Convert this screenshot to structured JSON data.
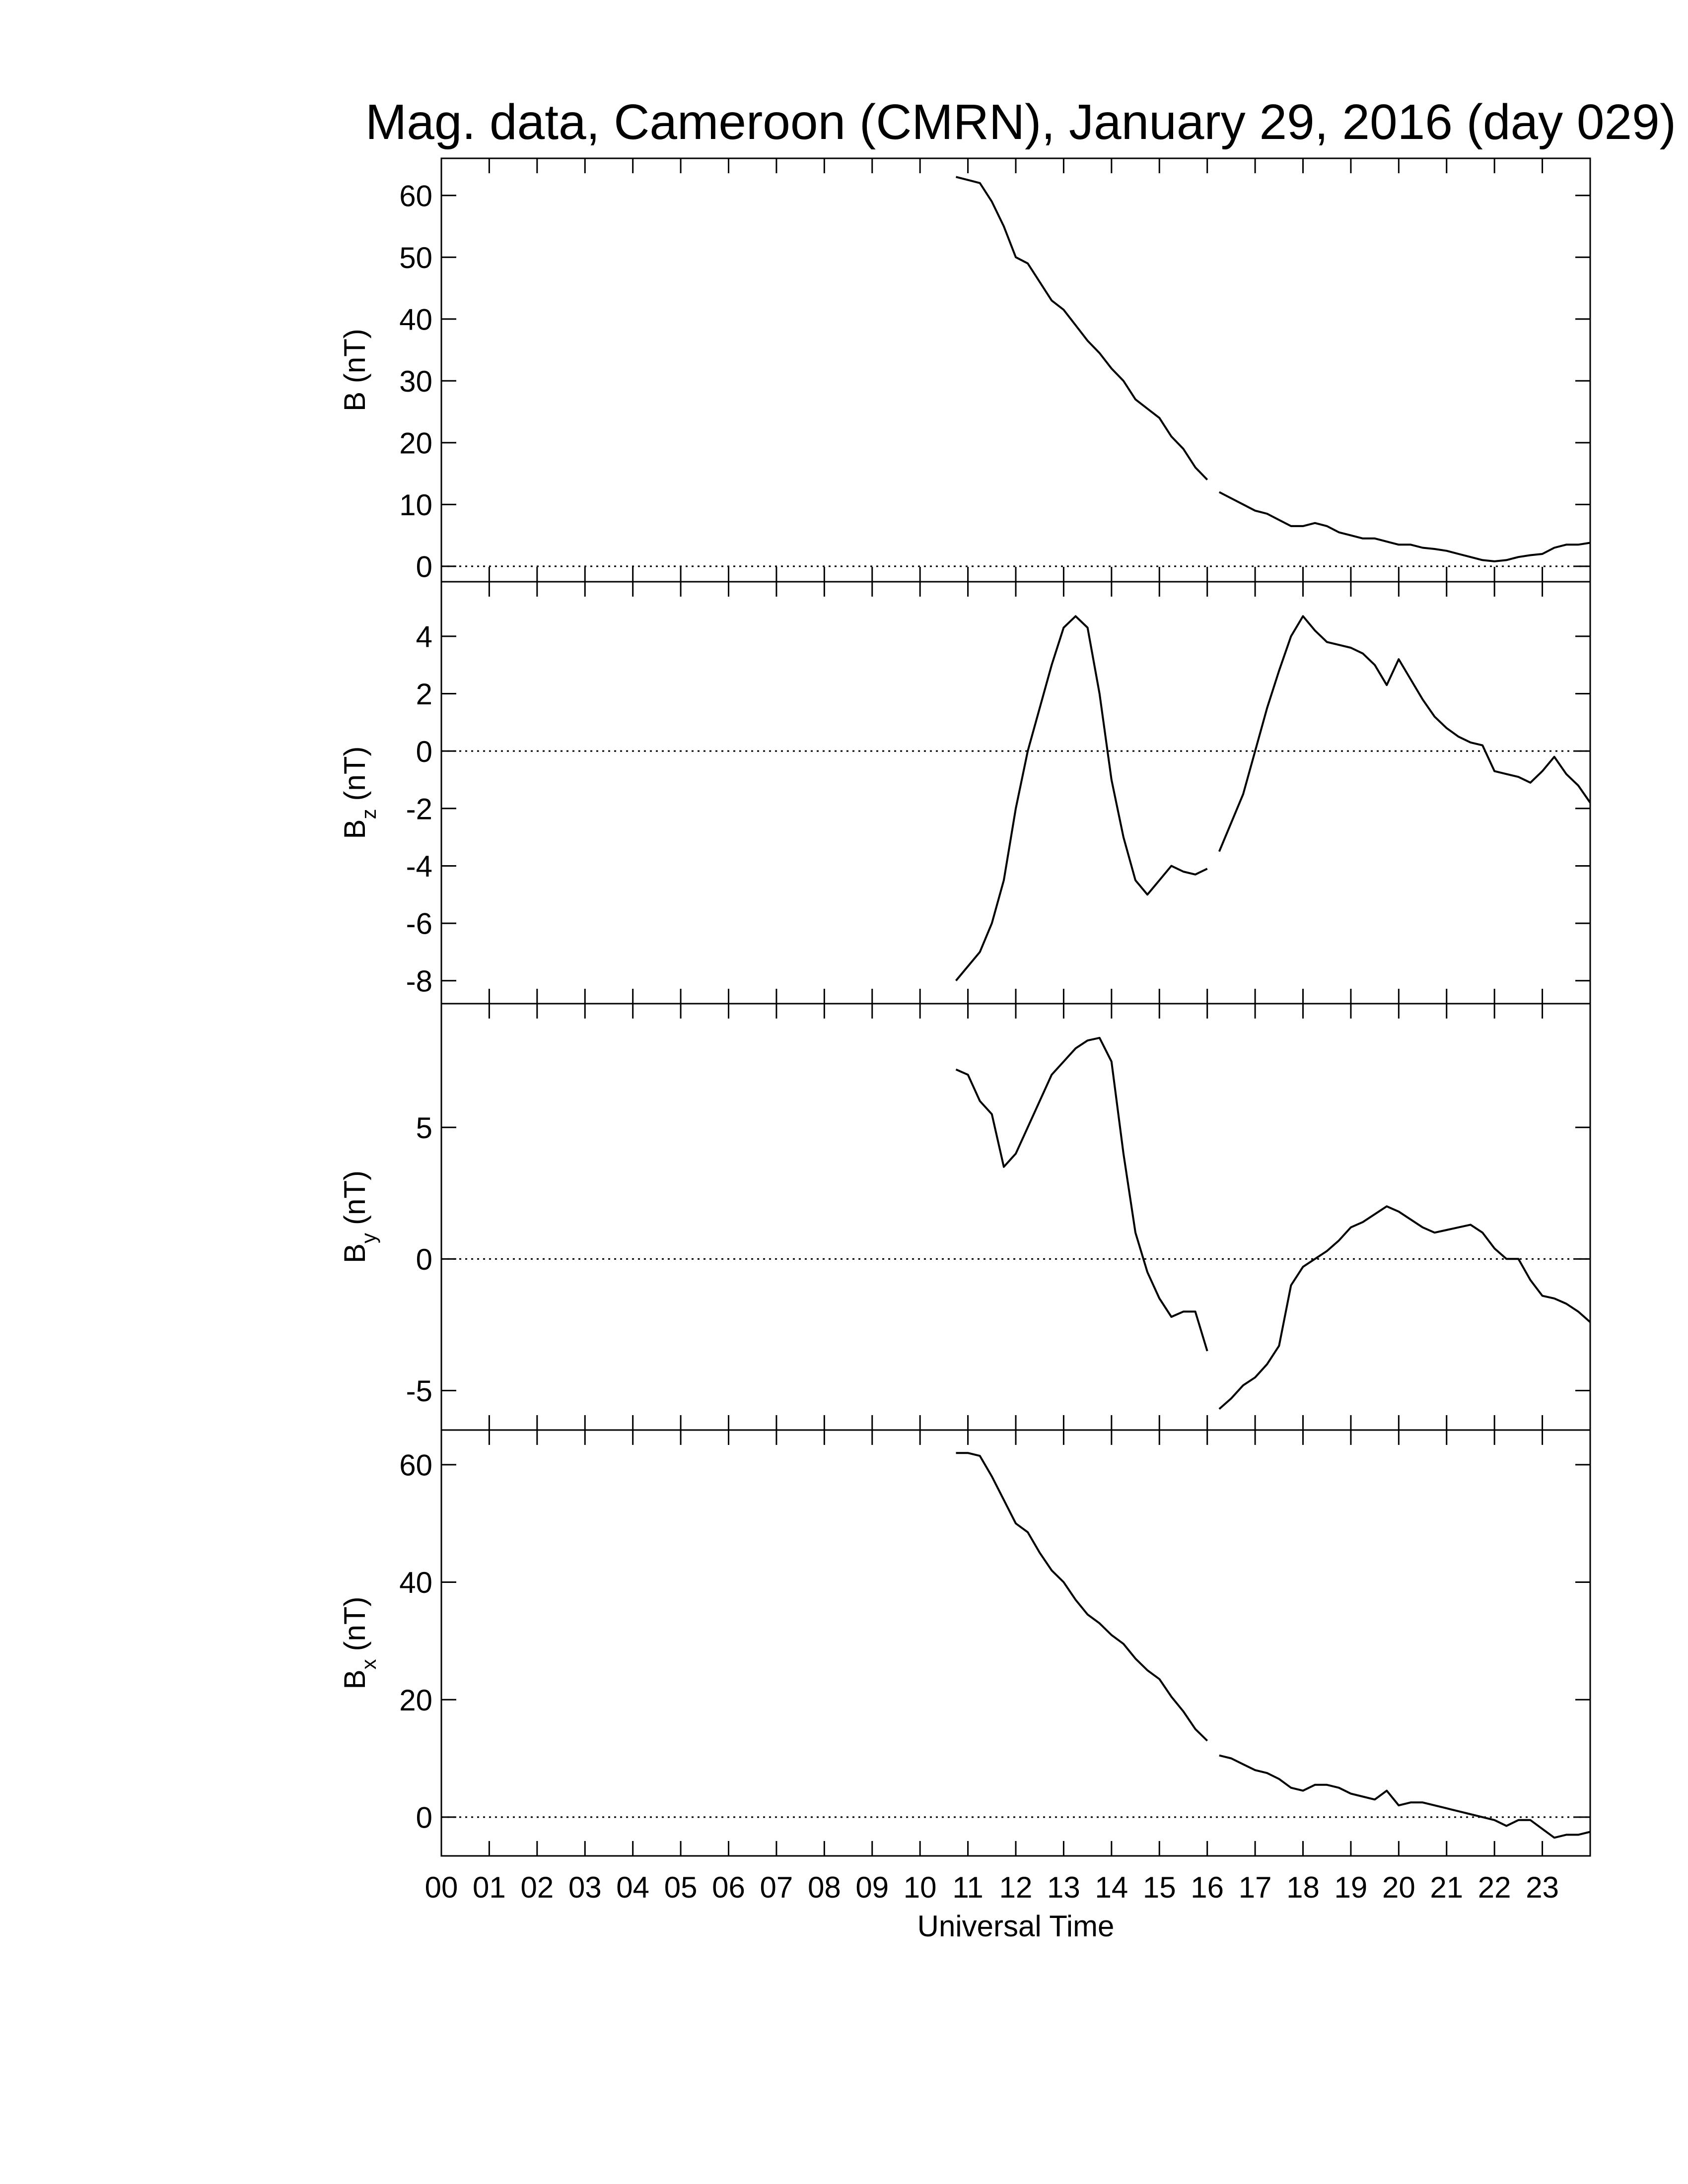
{
  "chart_data": [
    {
      "type": "line",
      "title": "Mag. data, Cameroon (CMRN), January 29, 2016 (day 029)",
      "ylabel": {
        "main": "B (nT)"
      },
      "xlim": [
        0,
        24
      ],
      "xticks": [
        0,
        1,
        2,
        3,
        4,
        5,
        6,
        7,
        8,
        9,
        10,
        11,
        12,
        13,
        14,
        15,
        16,
        17,
        18,
        19,
        20,
        21,
        22,
        23
      ],
      "ylim": [
        -2.5,
        66
      ],
      "yticks": [
        0,
        10,
        20,
        30,
        40,
        50,
        60
      ],
      "zeroline": true,
      "color": "#000000",
      "x": [
        10.75,
        11,
        11.25,
        11.5,
        11.75,
        12,
        12.25,
        12.5,
        12.75,
        13,
        13.25,
        13.5,
        13.75,
        14,
        14.25,
        14.5,
        14.75,
        15,
        15.25,
        15.5,
        15.75,
        16,
        16.125,
        16.25,
        16.5,
        16.75,
        17,
        17.25,
        17.5,
        17.75,
        18,
        18.25,
        18.5,
        18.75,
        19,
        19.25,
        19.5,
        19.75,
        20,
        20.25,
        20.5,
        20.75,
        21,
        21.25,
        21.5,
        21.75,
        22,
        22.25,
        22.5,
        22.75,
        23,
        23.25,
        23.5,
        23.75,
        24
      ],
      "values": [
        63,
        62.5,
        62,
        59,
        55,
        50,
        49,
        46,
        43,
        41.5,
        39,
        36.5,
        34.5,
        32,
        30,
        27,
        25.5,
        24,
        21,
        19,
        16,
        14,
        null,
        12,
        11,
        10,
        9,
        8.5,
        7.5,
        6.5,
        6.5,
        7,
        6.5,
        5.5,
        5,
        4.5,
        4.5,
        4,
        3.5,
        3.5,
        3,
        2.8,
        2.5,
        2,
        1.5,
        1,
        0.8,
        1,
        1.5,
        1.8,
        2,
        3,
        3.5,
        3.5,
        3.8
      ]
    },
    {
      "type": "line",
      "ylabel": {
        "main": "B",
        "sub": "z",
        "unit": "(nT)"
      },
      "xlim": [
        0,
        24
      ],
      "xticks": [
        0,
        1,
        2,
        3,
        4,
        5,
        6,
        7,
        8,
        9,
        10,
        11,
        12,
        13,
        14,
        15,
        16,
        17,
        18,
        19,
        20,
        21,
        22,
        23
      ],
      "ylim": [
        -8.8,
        5.9
      ],
      "yticks": [
        -8,
        -6,
        -4,
        -2,
        0,
        2,
        4
      ],
      "zeroline": true,
      "color": "#000000",
      "x": [
        10.75,
        11,
        11.25,
        11.5,
        11.75,
        12,
        12.25,
        12.5,
        12.75,
        13,
        13.25,
        13.5,
        13.75,
        14,
        14.25,
        14.5,
        14.75,
        15,
        15.25,
        15.5,
        15.75,
        16,
        16.125,
        16.25,
        16.5,
        16.75,
        17,
        17.25,
        17.5,
        17.75,
        18,
        18.25,
        18.5,
        18.75,
        19,
        19.25,
        19.5,
        19.75,
        20,
        20.25,
        20.5,
        20.75,
        21,
        21.25,
        21.5,
        21.75,
        22,
        22.25,
        22.5,
        22.75,
        23,
        23.25,
        23.5,
        23.75,
        24
      ],
      "values": [
        -8,
        -7.5,
        -7,
        -6,
        -4.5,
        -2,
        0,
        1.5,
        3,
        4.3,
        4.7,
        4.3,
        2,
        -1,
        -3,
        -4.5,
        -5,
        -4.5,
        -4,
        -4.2,
        -4.3,
        -4.1,
        null,
        -3.5,
        -2.5,
        -1.5,
        0,
        1.5,
        2.8,
        4,
        4.7,
        4.2,
        3.8,
        3.7,
        3.6,
        3.4,
        3,
        2.3,
        3.2,
        2.5,
        1.8,
        1.2,
        0.8,
        0.5,
        0.3,
        0.2,
        -0.7,
        -0.8,
        -0.9,
        -1.1,
        -0.7,
        -0.2,
        -0.8,
        -1.2,
        -1.8
      ]
    },
    {
      "type": "line",
      "ylabel": {
        "main": "B",
        "sub": "y",
        "unit": "(nT)"
      },
      "xlim": [
        0,
        24
      ],
      "xticks": [
        0,
        1,
        2,
        3,
        4,
        5,
        6,
        7,
        8,
        9,
        10,
        11,
        12,
        13,
        14,
        15,
        16,
        17,
        18,
        19,
        20,
        21,
        22,
        23
      ],
      "ylim": [
        -6.5,
        9.7
      ],
      "yticks": [
        -5,
        0,
        5
      ],
      "zeroline": true,
      "color": "#000000",
      "x": [
        10.75,
        11,
        11.25,
        11.5,
        11.75,
        12,
        12.25,
        12.5,
        12.75,
        13,
        13.25,
        13.5,
        13.75,
        14,
        14.25,
        14.5,
        14.75,
        15,
        15.25,
        15.5,
        15.75,
        16,
        16.125,
        16.25,
        16.5,
        16.75,
        17,
        17.25,
        17.5,
        17.75,
        18,
        18.25,
        18.5,
        18.75,
        19,
        19.25,
        19.5,
        19.75,
        20,
        20.25,
        20.5,
        20.75,
        21,
        21.25,
        21.5,
        21.75,
        22,
        22.25,
        22.5,
        22.75,
        23,
        23.25,
        23.5,
        23.75,
        24
      ],
      "values": [
        7.2,
        7,
        6,
        5.5,
        3.5,
        4,
        5,
        6,
        7,
        7.5,
        8,
        8.3,
        8.4,
        7.5,
        4,
        1,
        -0.5,
        -1.5,
        -2.2,
        -2,
        -2,
        -3.5,
        null,
        -5.7,
        -5.3,
        -4.8,
        -4.5,
        -4,
        -3.3,
        -1,
        -0.3,
        0,
        0.3,
        0.7,
        1.2,
        1.4,
        1.7,
        2,
        1.8,
        1.5,
        1.2,
        1,
        1.1,
        1.2,
        1.3,
        1,
        0.4,
        0,
        0,
        -0.8,
        -1.4,
        -1.5,
        -1.7,
        -2,
        -2.4
      ]
    },
    {
      "type": "line",
      "ylabel": {
        "main": "B",
        "sub": "x",
        "unit": "(nT)"
      },
      "xlabel": "Universal Time",
      "xlim": [
        0,
        24
      ],
      "xticks": [
        {
          "value": 0,
          "label": "00"
        },
        {
          "value": 1,
          "label": "01"
        },
        {
          "value": 2,
          "label": "02"
        },
        {
          "value": 3,
          "label": "03"
        },
        {
          "value": 4,
          "label": "04"
        },
        {
          "value": 5,
          "label": "05"
        },
        {
          "value": 6,
          "label": "06"
        },
        {
          "value": 7,
          "label": "07"
        },
        {
          "value": 8,
          "label": "08"
        },
        {
          "value": 9,
          "label": "09"
        },
        {
          "value": 10,
          "label": "10"
        },
        {
          "value": 11,
          "label": "11"
        },
        {
          "value": 12,
          "label": "12"
        },
        {
          "value": 13,
          "label": "13"
        },
        {
          "value": 14,
          "label": "14"
        },
        {
          "value": 15,
          "label": "15"
        },
        {
          "value": 16,
          "label": "16"
        },
        {
          "value": 17,
          "label": "17"
        },
        {
          "value": 18,
          "label": "18"
        },
        {
          "value": 19,
          "label": "19"
        },
        {
          "value": 20,
          "label": "20"
        },
        {
          "value": 21,
          "label": "21"
        },
        {
          "value": 22,
          "label": "22"
        },
        {
          "value": 23,
          "label": "23"
        }
      ],
      "ylim": [
        -6.6,
        65.9
      ],
      "yticks": [
        0,
        20,
        40,
        60
      ],
      "zeroline": true,
      "color": "#000000",
      "x": [
        10.75,
        11,
        11.25,
        11.5,
        11.75,
        12,
        12.25,
        12.5,
        12.75,
        13,
        13.25,
        13.5,
        13.75,
        14,
        14.25,
        14.5,
        14.75,
        15,
        15.25,
        15.5,
        15.75,
        16,
        16.125,
        16.25,
        16.5,
        16.75,
        17,
        17.25,
        17.5,
        17.75,
        18,
        18.25,
        18.5,
        18.75,
        19,
        19.25,
        19.5,
        19.75,
        20,
        20.25,
        20.5,
        20.75,
        21,
        21.25,
        21.5,
        21.75,
        22,
        22.25,
        22.5,
        22.75,
        23,
        23.25,
        23.5,
        23.75,
        24
      ],
      "values": [
        62,
        62,
        61.5,
        58,
        54,
        50,
        48.5,
        45,
        42,
        40,
        37,
        34.5,
        33,
        31,
        29.5,
        27,
        25,
        23.5,
        20.5,
        18,
        15,
        13,
        null,
        10.5,
        10,
        9,
        8,
        7.5,
        6.5,
        5,
        4.5,
        5.5,
        5.5,
        5,
        4,
        3.5,
        3,
        4.5,
        2,
        2.5,
        2.5,
        2,
        1.5,
        1,
        0.5,
        0,
        -0.5,
        -1.5,
        -0.5,
        -0.5,
        -2,
        -3.5,
        -3,
        -3,
        -2.5
      ]
    }
  ]
}
